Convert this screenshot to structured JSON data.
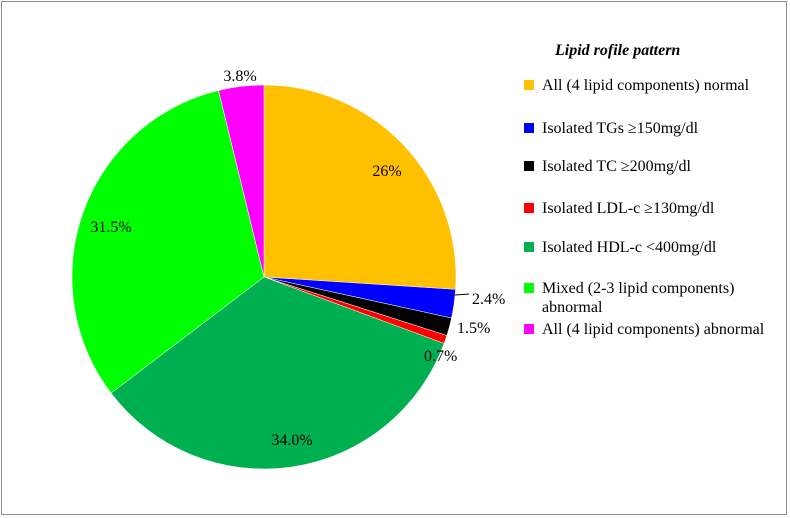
{
  "chart_data": {
    "type": "pie",
    "legend_title": "Lipid rofile pattern",
    "legend_position": "right",
    "slices": [
      {
        "label": "All (4 lipid components) normal",
        "value": 26.0,
        "display": "26%",
        "color": "#FFC000"
      },
      {
        "label": "Isolated  TGs ≥150mg/dl",
        "value": 2.4,
        "display": "2.4%",
        "color": "#0000FF"
      },
      {
        "label": "Isolated TC ≥200mg/dl",
        "value": 1.5,
        "display": "1.5%",
        "color": "#000000"
      },
      {
        "label": "Isolated LDL-c ≥130mg/dl",
        "value": 0.7,
        "display": "0.7%",
        "color": "#FF0000"
      },
      {
        "label": "Isolated HDL-c <400mg/dl",
        "value": 34.0,
        "display": "34.0%",
        "color": "#00B050"
      },
      {
        "label": "Mixed (2-3 lipid components) abnormal",
        "value": 31.5,
        "display": "31.5%",
        "color": "#00FF00"
      },
      {
        "label": "All (4 lipid components) abnormal",
        "value": 3.8,
        "display": "3.8%",
        "color": "#FF00FF"
      }
    ]
  }
}
